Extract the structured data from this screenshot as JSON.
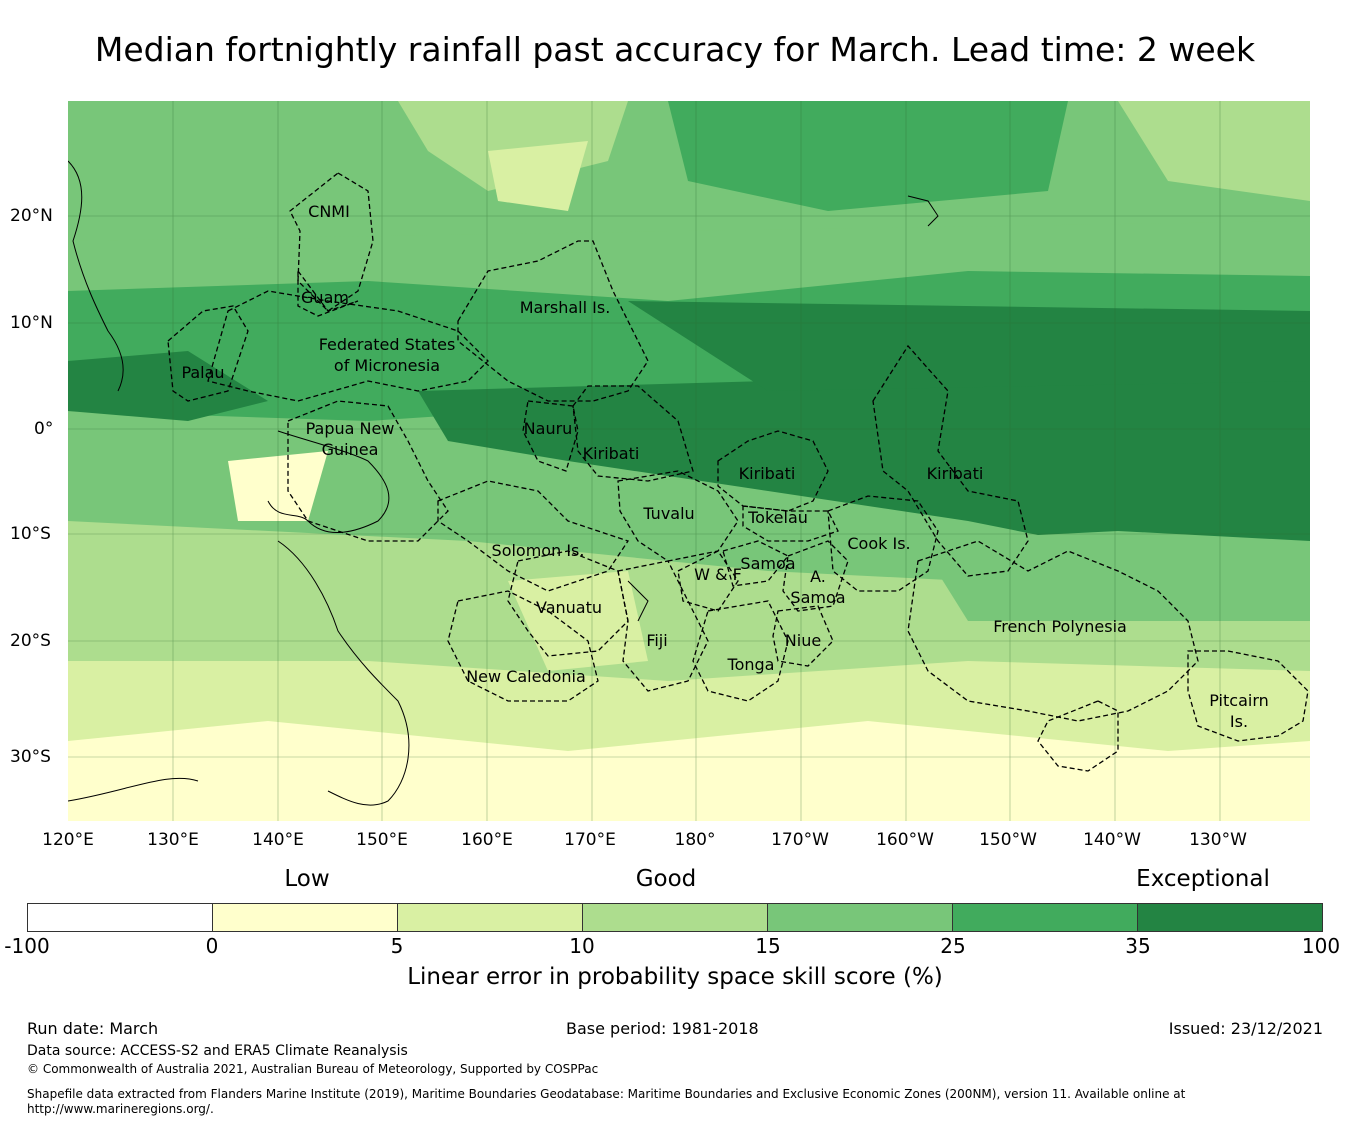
{
  "title": "Median fortnightly rainfall past accuracy for March. Lead time: 2 week",
  "map": {
    "longitude_ticks": [
      "120°E",
      "130°E",
      "140°E",
      "150°E",
      "160°E",
      "170°E",
      "180°",
      "170°W",
      "160°W",
      "150°W",
      "140°W",
      "130°W"
    ],
    "latitude_ticks": [
      "20°N",
      "10°N",
      "0°",
      "10°S",
      "20°S",
      "30°S"
    ],
    "region_labels": {
      "cnmi": "CNMI",
      "guam": "Guam",
      "marshall": "Marshall Is.",
      "fsm_1": "Federated States",
      "fsm_2": "of Micronesia",
      "palau": "Palau",
      "png_1": "Papua New",
      "png_2": "Guinea",
      "nauru": "Nauru",
      "kiribati_w": "Kiribati",
      "kiribati_c": "Kiribati",
      "kiribati_e": "Kiribati",
      "tuvalu": "Tuvalu",
      "tokelau": "Tokelau",
      "solomon": "Solomon Is.",
      "samoa": "Samoa",
      "wf": "W & F",
      "asamoa_1": "A.",
      "asamoa_2": "Samoa",
      "cook": "Cook Is.",
      "vanuatu": "Vanuatu",
      "fiji": "Fiji",
      "niue": "Niue",
      "tonga": "Tonga",
      "french_polynesia": "French Polynesia",
      "new_caledonia": "New Caledonia",
      "pitcairn_1": "Pitcairn",
      "pitcairn_2": "Is."
    }
  },
  "legend": {
    "categories": [
      "Low",
      "Good",
      "Exceptional"
    ],
    "ticks": [
      "-100",
      "0",
      "5",
      "10",
      "15",
      "25",
      "35",
      "100"
    ],
    "colors": [
      "#ffffff",
      "#ffffcc",
      "#d9f0a3",
      "#addd8e",
      "#78c679",
      "#41ab5d",
      "#238443"
    ],
    "label": "Linear error in probability space skill score (%)"
  },
  "footer": {
    "run_date": "Run date: March",
    "base_period": "Base period: 1981-2018",
    "issued": "Issued: 23/12/2021",
    "data_source": "Data source: ACCESS-S2 and ERA5 Climate Reanalysis",
    "copyright": "© Commonwealth of Australia 2021, Australian Bureau of Meteorology, Supported by COSPPac",
    "shapefile_1": "Shapefile data extracted from Flanders Marine Institute (2019), Maritime Boundaries Geodatabase: Maritime Boundaries and Exclusive Economic Zones (200NM), version 11. Available online at",
    "shapefile_2": "http://www.marineregions.org/."
  }
}
